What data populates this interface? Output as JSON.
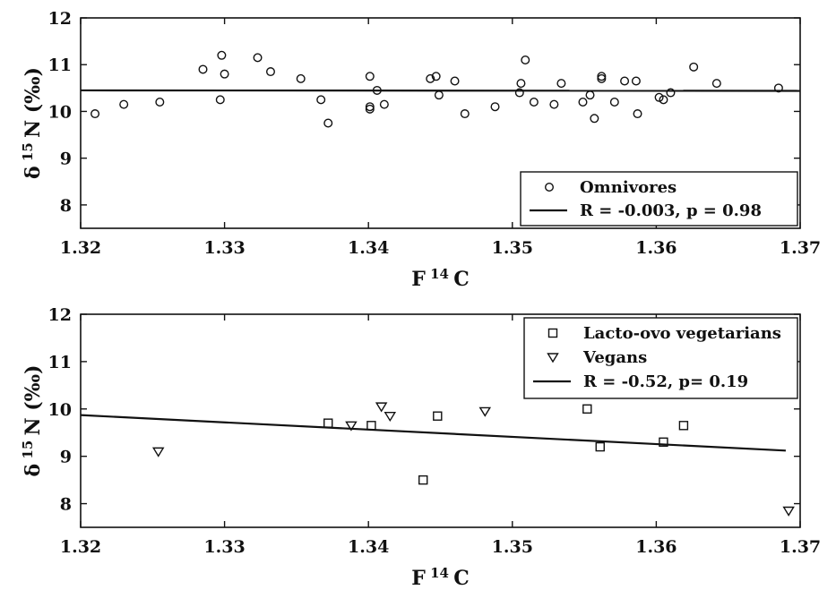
{
  "chart_data": [
    {
      "type": "scatter",
      "xlabel": "F",
      "xlabel_sup": "14",
      "xlabel_tail": "C",
      "ylabel": "δ",
      "ylabel_sup": "15",
      "ylabel_tail": "N (‰)",
      "xlim": [
        1.32,
        1.37
      ],
      "ylim": [
        7.5,
        12
      ],
      "xticks": [
        "1.32",
        "1.33",
        "1.34",
        "1.35",
        "1.36",
        "1.37"
      ],
      "yticks": [
        "8",
        "9",
        "10",
        "11",
        "12"
      ],
      "grid": false,
      "legend_position": "bottom-right",
      "series": [
        {
          "name": "Omnivores",
          "marker": "circle",
          "x": [
            1.321,
            1.323,
            1.3255,
            1.3285,
            1.3297,
            1.3298,
            1.33,
            1.3323,
            1.3332,
            1.3353,
            1.3367,
            1.3372,
            1.3401,
            1.3401,
            1.3401,
            1.3406,
            1.3411,
            1.3443,
            1.3447,
            1.3449,
            1.346,
            1.3467,
            1.3488,
            1.3505,
            1.3506,
            1.3509,
            1.3515,
            1.3529,
            1.3534,
            1.3549,
            1.3554,
            1.3557,
            1.3562,
            1.3562,
            1.3571,
            1.3578,
            1.3586,
            1.3587,
            1.3602,
            1.3605,
            1.361,
            1.3626,
            1.3642,
            1.3685
          ],
          "y": [
            9.95,
            10.15,
            10.2,
            10.9,
            10.25,
            11.2,
            10.8,
            11.15,
            10.85,
            10.7,
            10.25,
            9.75,
            10.75,
            10.1,
            10.05,
            10.45,
            10.15,
            10.7,
            10.75,
            10.35,
            10.65,
            9.95,
            10.1,
            10.4,
            10.6,
            11.1,
            10.2,
            10.15,
            10.6,
            10.2,
            10.35,
            9.85,
            10.75,
            10.7,
            10.2,
            10.65,
            10.65,
            9.95,
            10.3,
            10.25,
            10.4,
            10.95,
            10.6,
            10.5
          ]
        }
      ],
      "fit": {
        "label": "R = -0.003, p = 0.98",
        "x": [
          1.32,
          1.37
        ],
        "y": [
          10.45,
          10.44
        ]
      }
    },
    {
      "type": "scatter",
      "xlabel": "F",
      "xlabel_sup": "14",
      "xlabel_tail": "C",
      "ylabel": "δ",
      "ylabel_sup": "15",
      "ylabel_tail": "N (‰)",
      "xlim": [
        1.32,
        1.37
      ],
      "ylim": [
        7.5,
        12
      ],
      "xticks": [
        "1.32",
        "1.33",
        "1.34",
        "1.35",
        "1.36",
        "1.37"
      ],
      "yticks": [
        "8",
        "9",
        "10",
        "11",
        "12"
      ],
      "grid": false,
      "legend_position": "top-right",
      "series": [
        {
          "name": "Lacto-ovo vegetarians",
          "marker": "square",
          "x": [
            1.3372,
            1.3402,
            1.3438,
            1.3448,
            1.3552,
            1.3561,
            1.3605,
            1.3619
          ],
          "y": [
            9.7,
            9.65,
            8.5,
            9.85,
            10.0,
            9.2,
            9.3,
            9.65
          ]
        },
        {
          "name": "Vegans",
          "marker": "triangle-down",
          "x": [
            1.3254,
            1.3388,
            1.3409,
            1.3415,
            1.3481,
            1.3692
          ],
          "y": [
            9.1,
            9.65,
            10.05,
            9.85,
            9.95,
            7.85
          ]
        }
      ],
      "fit": {
        "label": "R = -0.52, p= 0.19",
        "x": [
          1.32,
          1.369
        ],
        "y": [
          9.87,
          9.12
        ]
      }
    }
  ]
}
